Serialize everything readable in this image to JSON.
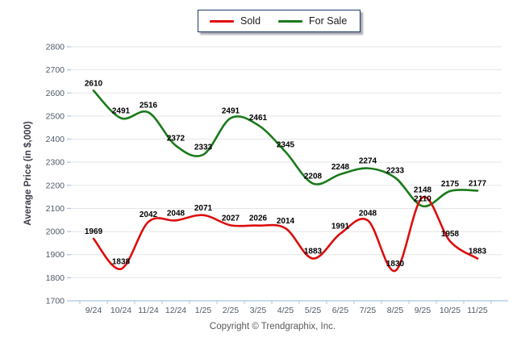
{
  "legend": {
    "items": [
      {
        "label": "Sold",
        "color": "#dd0e0e"
      },
      {
        "label": "For Sale",
        "color": "#1a7a1a"
      }
    ]
  },
  "chart_data": {
    "type": "line",
    "title": "",
    "ylabel": "Average Price (in $,000)",
    "xlabel": "",
    "categories": [
      "9/24",
      "10/24",
      "11/24",
      "12/24",
      "1/25",
      "2/25",
      "3/25",
      "4/25",
      "5/25",
      "6/25",
      "7/25",
      "8/25",
      "9/25",
      "10/25",
      "11/25"
    ],
    "series": [
      {
        "name": "Sold",
        "color": "#dd0e0e",
        "values": [
          1969,
          1838,
          2042,
          2048,
          2071,
          2027,
          2026,
          2014,
          1883,
          1991,
          2048,
          1830,
          2148,
          1958,
          1883
        ]
      },
      {
        "name": "For Sale",
        "color": "#1a7a1a",
        "values": [
          2610,
          2491,
          2516,
          2372,
          2333,
          2491,
          2461,
          2345,
          2208,
          2248,
          2274,
          2233,
          2110,
          2175,
          2177
        ]
      }
    ],
    "ylim": [
      1700,
      2800
    ],
    "ytick_step": 100,
    "grid": true,
    "legend_position": "top-center",
    "data_labels": true
  },
  "footer": {
    "copyright": "Copyright © Trendgraphix, Inc."
  },
  "colors": {
    "sold": "#dd0e0e",
    "for_sale": "#1a7a1a",
    "gridline": "#e5e5e5",
    "axis": "#a9c6e4",
    "tick_text": "#4f5a68",
    "axis_title_text": "#3c3c4e",
    "data_label_text": "#000000",
    "legend_border": "#1f3864"
  }
}
